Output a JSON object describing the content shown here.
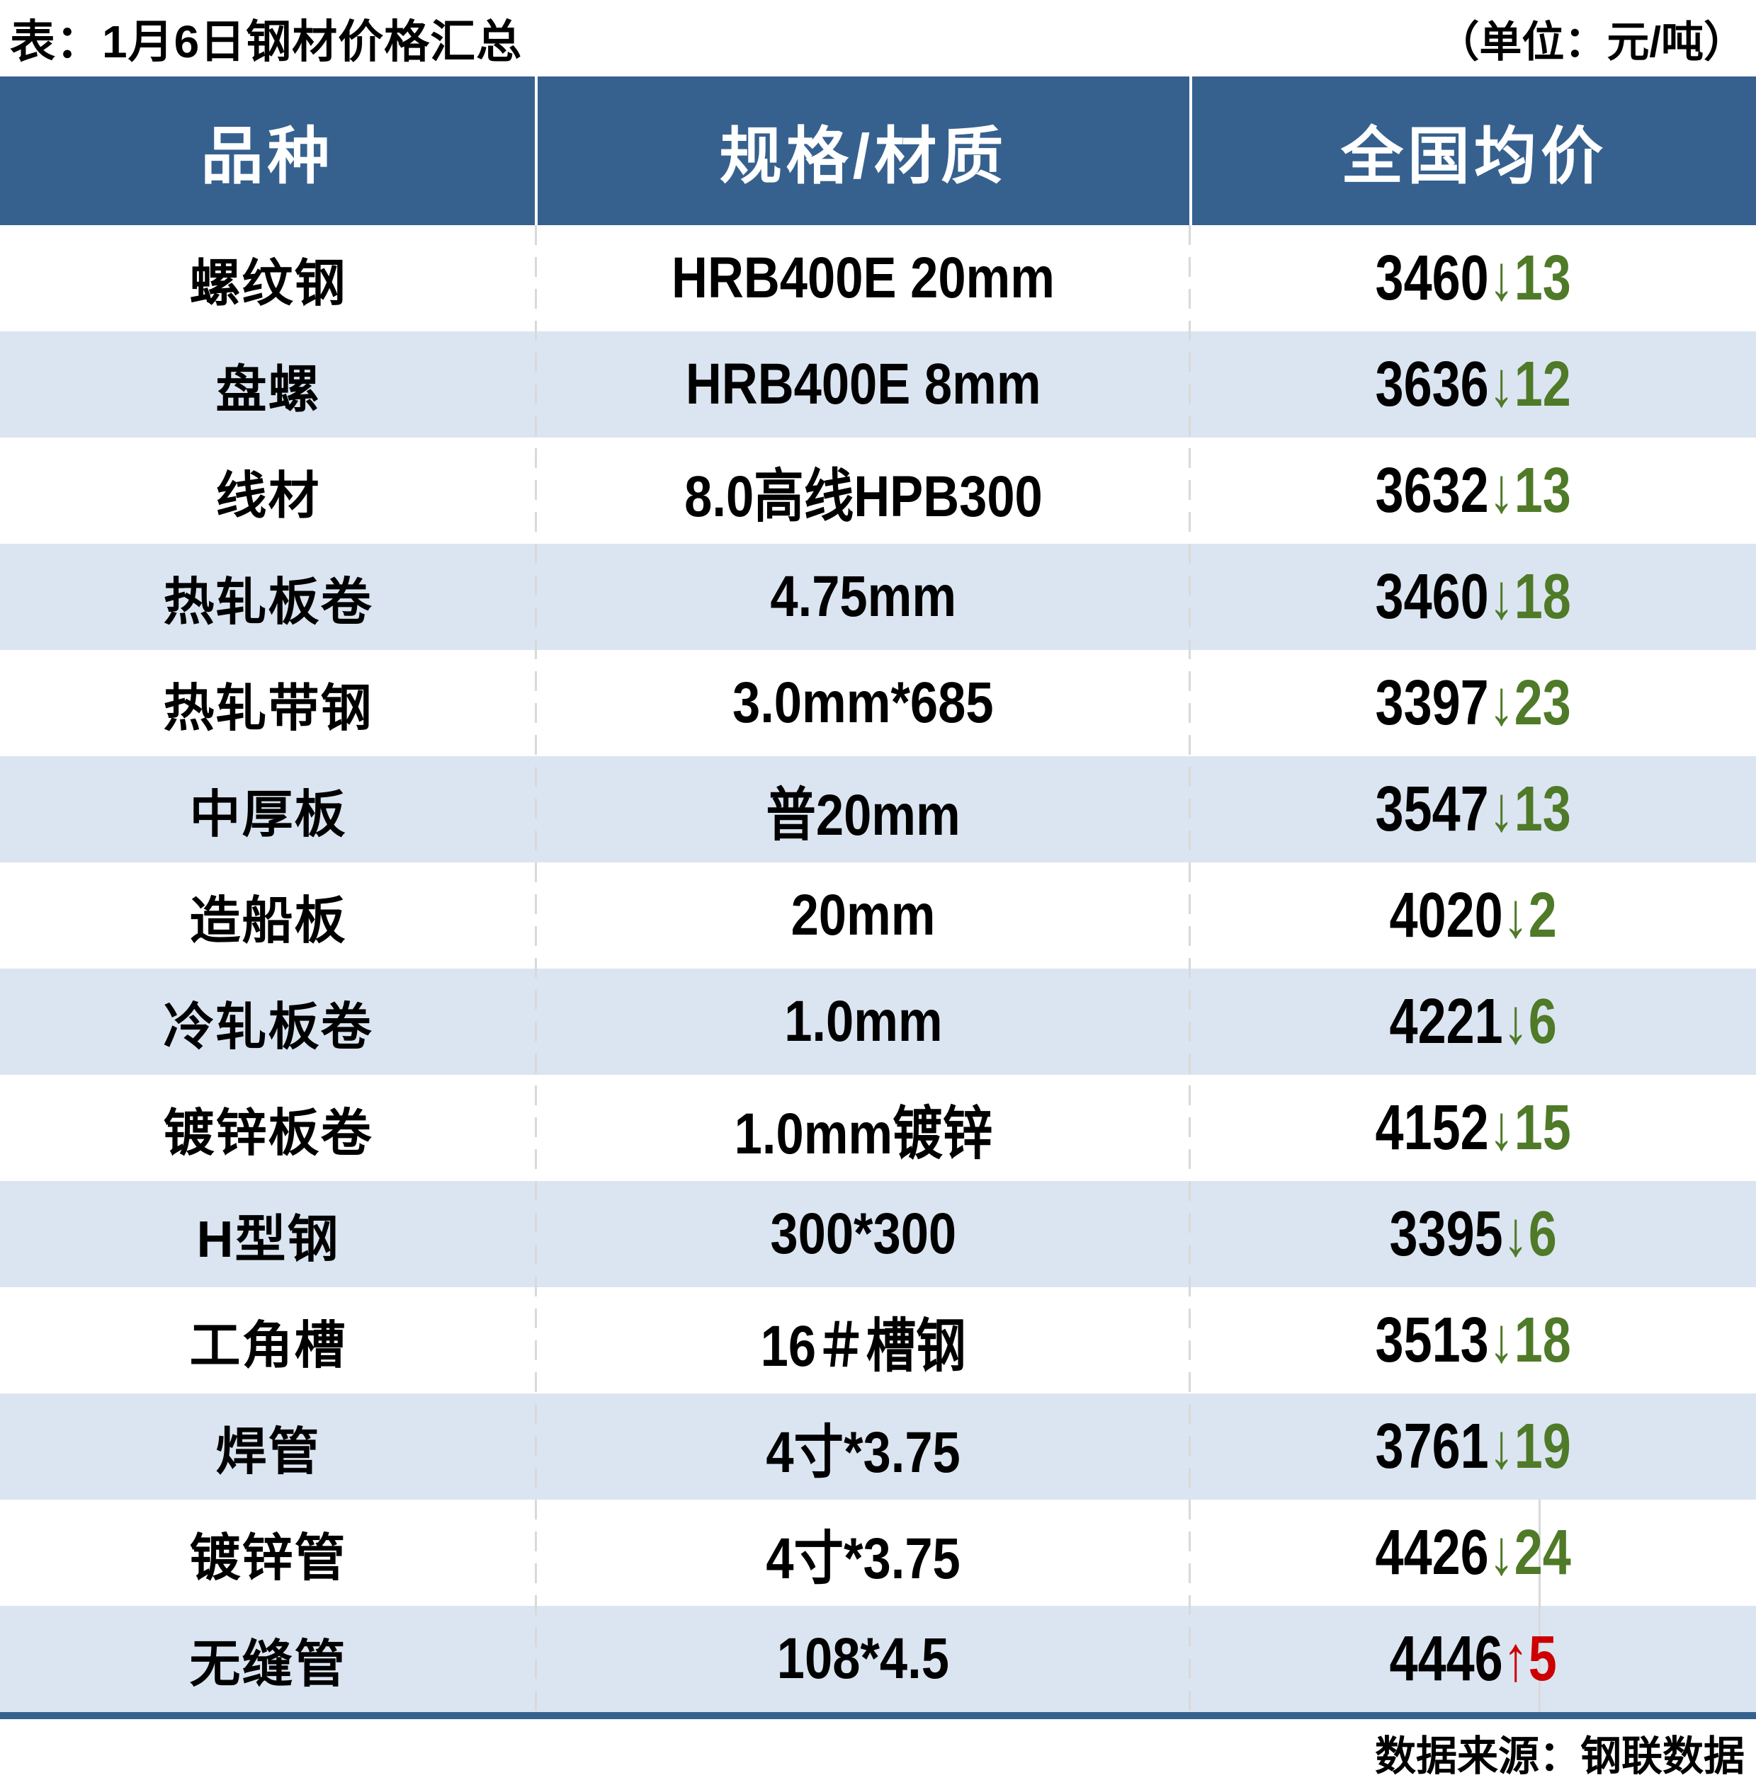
{
  "chart_data": {
    "type": "table",
    "title": "表：1月6日钢材价格汇总",
    "unit_note": "（单位：元/吨）",
    "columns": [
      "品种",
      "规格/材质",
      "全国均价"
    ],
    "rows": [
      {
        "variety": "螺纹钢",
        "spec": "HRB400E 20mm",
        "price": "3460",
        "direction": "down",
        "change": "13"
      },
      {
        "variety": "盘螺",
        "spec": "HRB400E 8mm",
        "price": "3636",
        "direction": "down",
        "change": "12"
      },
      {
        "variety": "线材",
        "spec": "8.0高线HPB300",
        "price": "3632",
        "direction": "down",
        "change": "13"
      },
      {
        "variety": "热轧板卷",
        "spec": "4.75mm",
        "price": "3460",
        "direction": "down",
        "change": "18"
      },
      {
        "variety": "热轧带钢",
        "spec": "3.0mm*685",
        "price": "3397",
        "direction": "down",
        "change": "23"
      },
      {
        "variety": "中厚板",
        "spec": "普20mm",
        "price": "3547",
        "direction": "down",
        "change": "13"
      },
      {
        "variety": "造船板",
        "spec": "20mm",
        "price": "4020",
        "direction": "down",
        "change": "2"
      },
      {
        "variety": "冷轧板卷",
        "spec": "1.0mm",
        "price": "4221",
        "direction": "down",
        "change": "6"
      },
      {
        "variety": "镀锌板卷",
        "spec": "1.0mm镀锌",
        "price": "4152",
        "direction": "down",
        "change": "15"
      },
      {
        "variety": "H型钢",
        "spec": "300*300",
        "price": "3395",
        "direction": "down",
        "change": "6"
      },
      {
        "variety": "工角槽",
        "spec": "16＃槽钢",
        "price": "3513",
        "direction": "down",
        "change": "18"
      },
      {
        "variety": "焊管",
        "spec": "4寸*3.75",
        "price": "3761",
        "direction": "down",
        "change": "19"
      },
      {
        "variety": "镀锌管",
        "spec": "4寸*3.75",
        "price": "4426",
        "direction": "down",
        "change": "24"
      },
      {
        "variety": "无缝管",
        "spec": "108*4.5",
        "price": "4446",
        "direction": "up",
        "change": "5"
      }
    ],
    "source_note": "数据来源：钢联数据"
  },
  "icons": {
    "down_arrow": "↓",
    "up_arrow": "↑"
  },
  "colors": {
    "header_bg": "#36618F",
    "row_alt_bg": "#DBE5F1",
    "down_change": "#4F7A28",
    "up_change": "#CC0000",
    "divider": "#D9D9D9",
    "bottom_bar": "#36618F"
  }
}
